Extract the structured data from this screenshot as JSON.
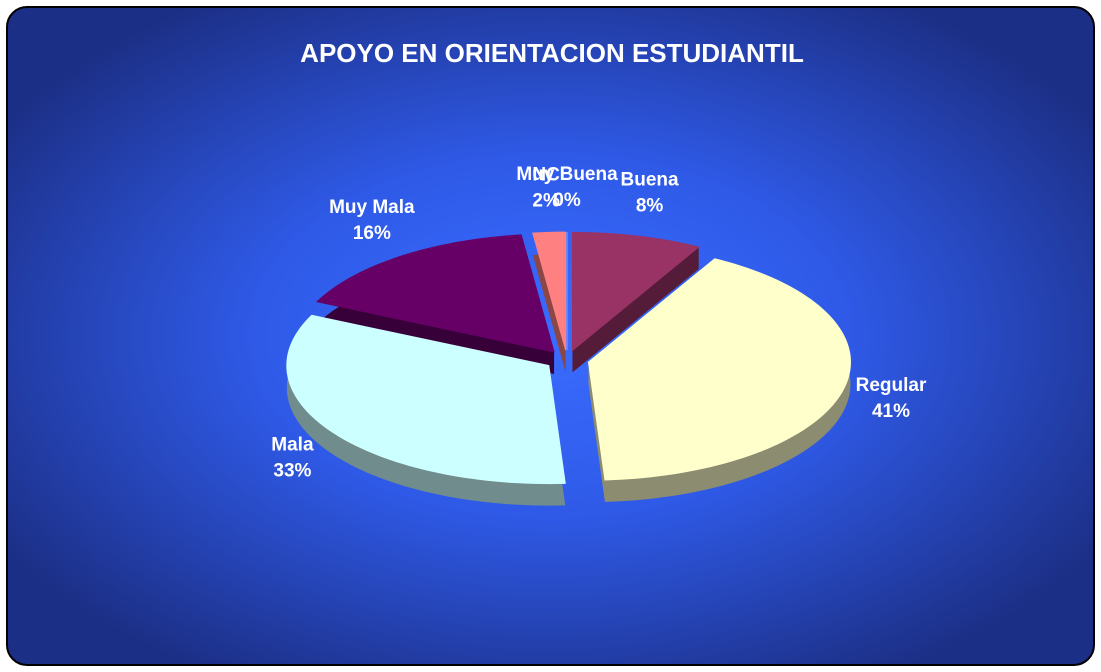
{
  "chart_data": {
    "type": "pie",
    "title": "APOYO EN ORIENTACION ESTUDIANTIL",
    "categories": [
      "Muy Buena",
      "Buena",
      "Regular",
      "Mala",
      "Muy Mala",
      "NC"
    ],
    "values": [
      0,
      8,
      41,
      33,
      16,
      2
    ],
    "value_labels": [
      "0%",
      "8%",
      "41%",
      "33%",
      "16%",
      "2%"
    ],
    "colors": [
      "#9999ff",
      "#993366",
      "#ffffcc",
      "#ccffff",
      "#660066",
      "#ff8080"
    ]
  }
}
